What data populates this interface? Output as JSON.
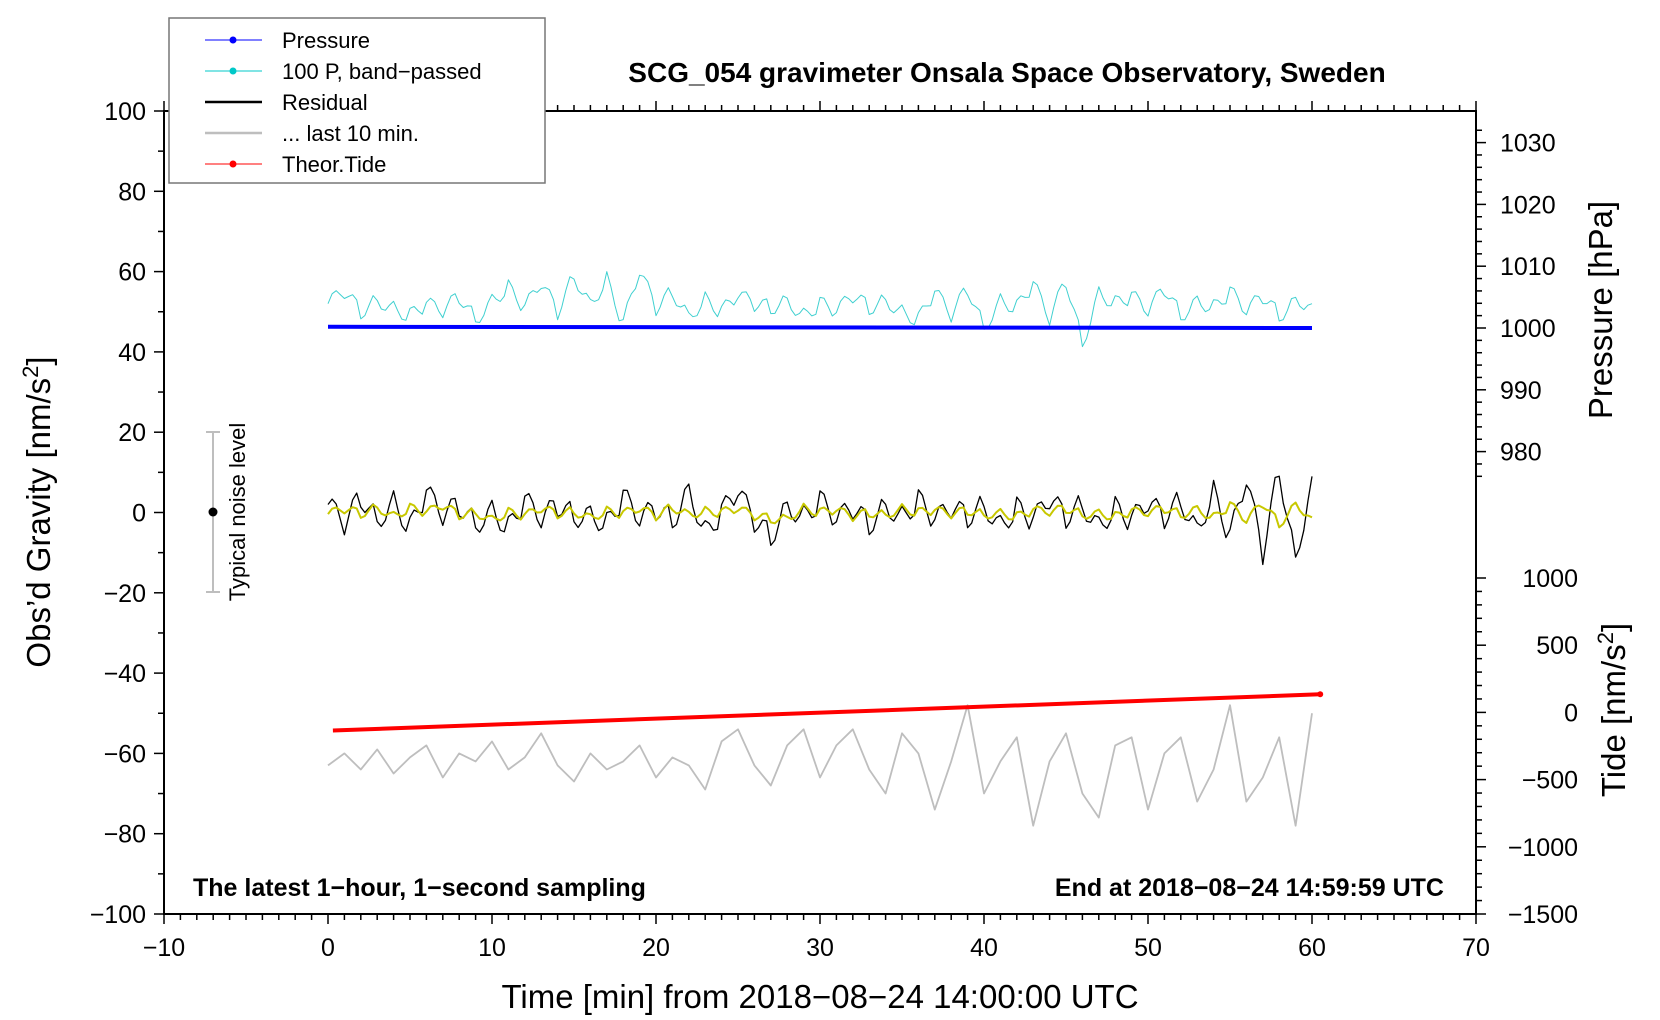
{
  "chart_data": {
    "type": "line",
    "title": "SCG_054 gravimeter Onsala Space Observatory, Sweden",
    "xlabel": "Time [min] from 2018−08−24 14:00:00 UTC",
    "ylabel": "Obs’d Gravity [nm/s2]",
    "ylabel_main": "Obs’d Gravity [nm/s",
    "ylabel_sup": "2",
    "ylabel_end": "]",
    "y2label": "Pressure [hPa]",
    "y3label_main": "Tide [nm/s",
    "y3label_sup": "2",
    "y3label_end": "]",
    "xlim": [
      -10,
      70
    ],
    "ylim": [
      -100,
      100
    ],
    "pressure_axis": [
      975,
      1033
    ],
    "tide_axis": [
      -1500,
      1000
    ],
    "xticks": [
      "−10",
      "0",
      "10",
      "20",
      "30",
      "40",
      "50",
      "60",
      "70"
    ],
    "yticks": [
      "−100",
      "−80",
      "−60",
      "−40",
      "−20",
      "0",
      "20",
      "40",
      "60",
      "80",
      "100"
    ],
    "pressure_ticks": [
      "980",
      "990",
      "1000",
      "1010",
      "1020",
      "1030"
    ],
    "tide_ticks": [
      "−1500",
      "−1000",
      "−500",
      "0",
      "500",
      "1000"
    ],
    "annotation_left": "The latest 1−hour, 1−second sampling",
    "annotation_right": "End at 2018−08−24 14:59:59 UTC",
    "noise_label": "Typical noise level",
    "noise_level": [
      -20,
      20
    ],
    "legend_placement": "top-left",
    "legend": [
      {
        "label": "Pressure",
        "color": "#0000ff",
        "marker": true
      },
      {
        "label": "100 P, band−passed",
        "color": "#00c8c8",
        "marker": true
      },
      {
        "label": "Residual",
        "color": "#000000",
        "marker": false
      },
      {
        "label": "... last 10 min.",
        "color": "#bebebe",
        "marker": false
      },
      {
        "label": "Theor.Tide",
        "color": "#ff0000",
        "marker": true
      }
    ],
    "x": [
      0,
      1,
      2,
      3,
      4,
      5,
      6,
      7,
      8,
      9,
      10,
      11,
      12,
      13,
      14,
      15,
      16,
      17,
      18,
      19,
      20,
      21,
      22,
      23,
      24,
      25,
      26,
      27,
      28,
      29,
      30,
      31,
      32,
      33,
      34,
      35,
      36,
      37,
      38,
      39,
      40,
      41,
      42,
      43,
      44,
      45,
      46,
      47,
      48,
      49,
      50,
      51,
      52,
      53,
      54,
      55,
      56,
      57,
      58,
      59,
      60
    ],
    "series": [
      {
        "name": "Pressure",
        "unit": "hPa",
        "color": "#0000ff",
        "start": 1000.2,
        "end": 1000.0
      },
      {
        "name": "100 P, band-passed",
        "unit": "nm/s2",
        "color": "#40d0d0",
        "values": [
          52,
          55,
          50,
          53,
          51,
          49,
          52,
          50,
          54,
          48,
          53,
          56,
          51,
          57,
          50,
          59,
          52,
          58,
          47,
          60,
          51,
          55,
          49,
          53,
          50,
          54,
          52,
          51,
          53,
          49,
          52,
          50,
          54,
          51,
          53,
          50,
          48,
          55,
          49,
          56,
          46,
          53,
          51,
          57,
          48,
          58,
          42,
          55,
          52,
          54,
          50,
          56,
          49,
          53,
          51,
          55,
          50,
          54,
          49,
          53,
          52
        ]
      },
      {
        "name": "Residual",
        "unit": "nm/s2",
        "color": "#000000",
        "values": [
          2,
          -3,
          4,
          -2,
          3,
          -4,
          5,
          -1,
          2,
          -3,
          1,
          -4,
          3,
          -2,
          2,
          -1,
          0,
          -3,
          4,
          -2,
          1,
          -2,
          6,
          -5,
          0,
          5,
          -2,
          -6,
          2,
          -1,
          3,
          -2,
          1,
          -3,
          2,
          -1,
          3,
          -2,
          1,
          -1,
          2,
          -3,
          1,
          -2,
          3,
          -1,
          2,
          -3,
          1,
          -2,
          2,
          -1,
          3,
          -4,
          5,
          -6,
          8,
          -10,
          11,
          -12,
          9
        ]
      },
      {
        "name": "... last 10 min.",
        "unit": "nm/s2 (offset)",
        "color": "#bebebe",
        "values": [
          -63,
          -60,
          -64,
          -59,
          -65,
          -61,
          -58,
          -66,
          -60,
          -62,
          -57,
          -64,
          -61,
          -55,
          -63,
          -67,
          -60,
          -64,
          -62,
          -58,
          -66,
          -61,
          -63,
          -69,
          -57,
          -54,
          -63,
          -68,
          -58,
          -54,
          -66,
          -58,
          -54,
          -64,
          -70,
          -55,
          -60,
          -74,
          -62,
          -48,
          -70,
          -62,
          -56,
          -78,
          -62,
          -55,
          -70,
          -76,
          -58,
          -56,
          -74,
          -60,
          -56,
          -72,
          -64,
          -48,
          -72,
          -66,
          -56,
          -78,
          -50
        ]
      },
      {
        "name": "Theor.Tide",
        "unit": "nm/s2",
        "color": "#ff0000",
        "x_range": [
          0.3,
          60.5
        ],
        "start": -135,
        "end": 135
      }
    ]
  }
}
